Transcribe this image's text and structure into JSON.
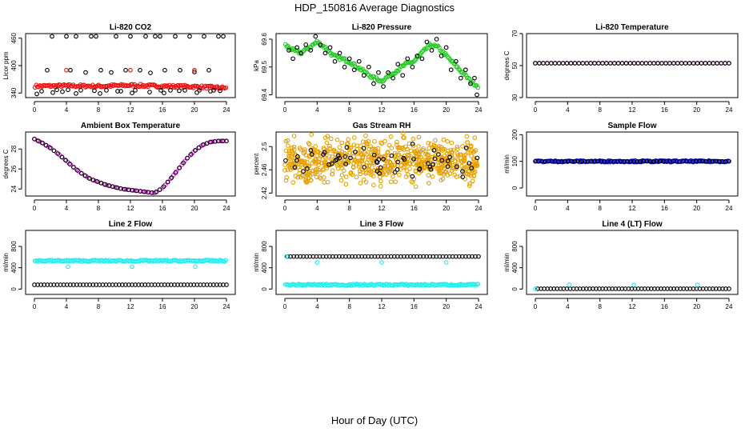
{
  "page": {
    "title": "HDP_150816  Average Diagnostics",
    "x_label": "Hour of Day (UTC)"
  },
  "colors": {
    "black": "#000000",
    "red": "#ee1111",
    "green": "#22cc22",
    "magenta": "#ee22ee",
    "orange": "#e8a000",
    "blue": "#1515c8",
    "cyan": "#22eeee"
  },
  "chart_data": [
    {
      "type": "scatter",
      "title": "Li-820 CO2",
      "ylabel": "Licor ppm",
      "xlim": [
        0,
        24
      ],
      "ylim": [
        330,
        470
      ],
      "xticks": [
        0,
        4,
        8,
        12,
        16,
        20,
        24
      ],
      "yticks": [
        340,
        400,
        460
      ],
      "series": [
        {
          "name": "avg",
          "color": "red",
          "style": "band",
          "x": [
            0,
            4,
            8,
            12,
            16,
            20,
            24
          ],
          "y": [
            355,
            356,
            355,
            357,
            355,
            354,
            351
          ],
          "jitter": 3
        },
        {
          "name": "outliers",
          "color": "black",
          "x": [
            0.3,
            0.9,
            1.6,
            2.2,
            2.8,
            3.5,
            4.0,
            4.5,
            5.2,
            5.8,
            6.4,
            7.1,
            7.7,
            8.3,
            9.0,
            9.6,
            10.2,
            10.8,
            11.4,
            12.0,
            12.6,
            13.2,
            13.9,
            14.5,
            15.1,
            15.7,
            16.3,
            17.0,
            17.6,
            18.2,
            18.8,
            19.4,
            20.0,
            20.6,
            21.2,
            21.8,
            22.4,
            23.0,
            23.6,
            2.3,
            4.2,
            5.2,
            7.5,
            8.2,
            10.4,
            12.2,
            14.4,
            15.8,
            16.2,
            18.1,
            20.3,
            22.0,
            23.2
          ],
          "y": [
            338,
            344,
            390,
            464,
            347,
            343,
            464,
            390,
            464,
            346,
            385,
            464,
            464,
            390,
            346,
            385,
            464,
            344,
            390,
            464,
            346,
            390,
            464,
            384,
            464,
            464,
            390,
            346,
            464,
            390,
            346,
            464,
            386,
            346,
            464,
            390,
            346,
            464,
            464,
            341,
            347,
            339,
            345,
            339,
            344,
            340,
            342,
            346,
            340,
            345,
            341,
            344,
            345
          ]
        },
        {
          "name": "red-highlights",
          "color": "red",
          "x": [
            4.0,
            12.0,
            20.0
          ],
          "y": [
            390,
            390,
            390
          ]
        }
      ]
    },
    {
      "type": "scatter",
      "title": "Li-820 Pressure",
      "ylabel": "kPa",
      "xlim": [
        0,
        24
      ],
      "ylim": [
        69.39,
        69.62
      ],
      "xticks": [
        0,
        4,
        8,
        12,
        16,
        20,
        24
      ],
      "yticks": [
        69.4,
        69.5,
        69.6
      ],
      "series": [
        {
          "name": "avg",
          "color": "green",
          "style": "band",
          "x": [
            0,
            1,
            2,
            3,
            4,
            5,
            6,
            7,
            8,
            9,
            10,
            11,
            12,
            13,
            14,
            15,
            16,
            17,
            18,
            19,
            20,
            21,
            22,
            23,
            24
          ],
          "y": [
            69.58,
            69.56,
            69.55,
            69.57,
            69.59,
            69.57,
            69.54,
            69.53,
            69.52,
            69.5,
            69.48,
            69.46,
            69.45,
            69.47,
            69.49,
            69.51,
            69.52,
            69.55,
            69.58,
            69.57,
            69.54,
            69.51,
            69.48,
            69.45,
            69.43
          ],
          "jitter": 0.006
        },
        {
          "name": "points",
          "color": "black",
          "x": [
            0.5,
            1.0,
            1.5,
            2.0,
            2.6,
            3.2,
            3.8,
            4.4,
            5.0,
            5.6,
            6.2,
            6.8,
            7.4,
            8.0,
            8.6,
            9.2,
            9.8,
            10.4,
            11.0,
            11.6,
            12.2,
            12.8,
            13.4,
            14.0,
            14.6,
            15.2,
            15.8,
            16.4,
            17.0,
            17.6,
            18.2,
            18.8,
            19.4,
            20.0,
            20.6,
            21.2,
            21.8,
            22.4,
            23.0,
            23.5,
            23.8
          ],
          "y": [
            69.56,
            69.53,
            69.57,
            69.55,
            69.58,
            69.56,
            69.61,
            69.58,
            69.55,
            69.57,
            69.52,
            69.55,
            69.5,
            69.53,
            69.49,
            69.52,
            69.47,
            69.5,
            69.44,
            69.48,
            69.43,
            69.48,
            69.46,
            69.51,
            69.47,
            69.53,
            69.5,
            69.54,
            69.53,
            69.59,
            69.56,
            69.6,
            69.54,
            69.57,
            69.49,
            69.52,
            69.46,
            69.49,
            69.44,
            69.46,
            69.4
          ]
        }
      ]
    },
    {
      "type": "scatter",
      "title": "Li-820 Temperature",
      "ylabel": "degrees C",
      "xlim": [
        0,
        24
      ],
      "ylim": [
        30,
        70
      ],
      "xticks": [
        0,
        4,
        8,
        12,
        16,
        20,
        24
      ],
      "yticks": [
        30,
        50,
        70
      ],
      "series": [
        {
          "name": "avg",
          "color": "magenta",
          "x": [
            0,
            24
          ],
          "y": [
            51.5,
            51.5
          ],
          "n": 50
        },
        {
          "name": "samples",
          "color": "black",
          "x": [
            0,
            24
          ],
          "y": [
            51.5,
            51.5
          ],
          "n": 50
        }
      ]
    },
    {
      "type": "scatter",
      "title": "Ambient Box Temperature",
      "ylabel": "degrees C",
      "xlim": [
        0,
        24
      ],
      "ylim": [
        23.3,
        29.7
      ],
      "xticks": [
        0,
        4,
        8,
        12,
        16,
        20,
        24
      ],
      "yticks": [
        24,
        26,
        28
      ],
      "series": [
        {
          "name": "avg",
          "color": "magenta",
          "style": "curve",
          "x": [
            0,
            1,
            2,
            3,
            4,
            5,
            6,
            7,
            8,
            9,
            10,
            11,
            12,
            13,
            14,
            15,
            16,
            17,
            18,
            19,
            20,
            21,
            22,
            23,
            24
          ],
          "y": [
            29.0,
            28.6,
            28.1,
            27.5,
            26.8,
            26.1,
            25.5,
            25.0,
            24.7,
            24.4,
            24.2,
            24.0,
            23.9,
            23.8,
            23.7,
            23.6,
            24.1,
            25.0,
            26.0,
            27.0,
            27.8,
            28.4,
            28.7,
            28.8,
            28.8
          ],
          "n": 70
        },
        {
          "name": "samples",
          "color": "black",
          "style": "curve",
          "x": [
            0,
            1,
            2,
            3,
            4,
            5,
            6,
            7,
            8,
            9,
            10,
            11,
            12,
            13,
            14,
            15,
            16,
            17,
            18,
            19,
            20,
            21,
            22,
            23,
            24
          ],
          "y": [
            29.0,
            28.6,
            28.1,
            27.5,
            26.8,
            26.1,
            25.5,
            25.0,
            24.7,
            24.4,
            24.2,
            24.0,
            23.9,
            23.8,
            23.7,
            23.6,
            24.1,
            25.0,
            26.0,
            27.0,
            27.8,
            28.4,
            28.7,
            28.8,
            28.8
          ],
          "n": 50
        }
      ]
    },
    {
      "type": "scatter",
      "title": "Gas Stream RH",
      "ylabel": "percent",
      "xlim": [
        0,
        24
      ],
      "ylim": [
        2.415,
        2.525
      ],
      "xticks": [
        0,
        4,
        8,
        12,
        16,
        20,
        24
      ],
      "yticks": [
        2.42,
        2.46,
        2.5
      ],
      "series": [
        {
          "name": "cloud",
          "color": "orange",
          "style": "cloud",
          "center": 2.475,
          "spread": 0.027,
          "n": 650
        },
        {
          "name": "points",
          "color": "black",
          "style": "cloud",
          "center": 2.477,
          "spread": 0.018,
          "n": 60
        }
      ]
    },
    {
      "type": "scatter",
      "title": "Sample Flow",
      "ylabel": "ml/min",
      "xlim": [
        0,
        24
      ],
      "ylim": [
        -30,
        210
      ],
      "xticks": [
        0,
        4,
        8,
        12,
        16,
        20,
        24
      ],
      "yticks": [
        0,
        100,
        200
      ],
      "series": [
        {
          "name": "avg",
          "color": "blue",
          "style": "band",
          "x": [
            0,
            24
          ],
          "y": [
            100,
            100
          ],
          "jitter": 3
        },
        {
          "name": "samples",
          "color": "black",
          "x": [
            0,
            24
          ],
          "y": [
            100,
            100
          ],
          "n": 60
        }
      ]
    },
    {
      "type": "scatter",
      "title": "Line 2 Flow",
      "ylabel": "ml/min",
      "xlim": [
        0,
        24
      ],
      "ylim": [
        -100,
        1100
      ],
      "xticks": [
        0,
        4,
        8,
        12,
        16,
        20,
        24
      ],
      "yticks": [
        0,
        400,
        800
      ],
      "series": [
        {
          "name": "upper",
          "color": "cyan",
          "style": "band",
          "x": [
            0,
            24
          ],
          "y": [
            530,
            530
          ],
          "jitter": 15
        },
        {
          "name": "lower",
          "color": "black",
          "x": [
            0,
            24
          ],
          "y": [
            80,
            80
          ],
          "n": 60
        },
        {
          "name": "dips",
          "color": "cyan",
          "x": [
            4.2,
            12.2,
            20.1
          ],
          "y": [
            420,
            420,
            420
          ]
        }
      ]
    },
    {
      "type": "scatter",
      "title": "Line 3 Flow",
      "ylabel": "ml/min",
      "xlim": [
        0,
        24
      ],
      "ylim": [
        -100,
        1100
      ],
      "xticks": [
        0,
        4,
        8,
        12,
        16,
        20,
        24
      ],
      "yticks": [
        0,
        400,
        800
      ],
      "series": [
        {
          "name": "upper",
          "color": "black",
          "x": [
            0.3,
            24
          ],
          "y": [
            610,
            610
          ],
          "n": 60
        },
        {
          "name": "lower",
          "color": "cyan",
          "style": "band",
          "x": [
            0,
            24
          ],
          "y": [
            80,
            80
          ],
          "jitter": 15
        },
        {
          "name": "marks",
          "color": "cyan",
          "x": [
            0.2,
            4.0,
            12.0,
            20.0
          ],
          "y": [
            610,
            500,
            500,
            500
          ]
        }
      ]
    },
    {
      "type": "scatter",
      "title": "Line 4 (LT) Flow",
      "ylabel": "ml/min",
      "xlim": [
        0,
        24
      ],
      "ylim": [
        -100,
        1100
      ],
      "xticks": [
        0,
        4,
        8,
        12,
        16,
        20,
        24
      ],
      "yticks": [
        0,
        400,
        800
      ],
      "series": [
        {
          "name": "samples",
          "color": "black",
          "x": [
            0.3,
            24
          ],
          "y": [
            5,
            5
          ],
          "n": 60
        },
        {
          "name": "marks",
          "color": "cyan",
          "x": [
            0.0,
            4.2,
            12.2,
            20.1
          ],
          "y": [
            5,
            80,
            80,
            80
          ]
        }
      ]
    }
  ]
}
